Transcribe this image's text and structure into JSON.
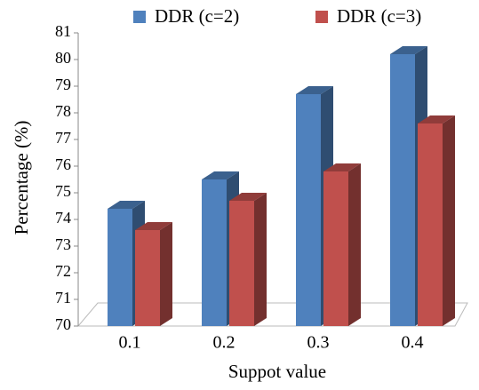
{
  "chart_data": {
    "type": "bar3d",
    "xlabel": "Suppot value",
    "ylabel": "Percentage (%)",
    "categories": [
      "0.1",
      "0.2",
      "0.3",
      "0.4"
    ],
    "series": [
      {
        "name": "DDR (c=2)",
        "color": "#4f81bd",
        "values": [
          74.4,
          75.5,
          78.7,
          80.2
        ]
      },
      {
        "name": "DDR (c=3)",
        "color": "#c0504d",
        "values": [
          73.6,
          74.7,
          75.8,
          77.6
        ]
      }
    ],
    "ylim": [
      70,
      81
    ],
    "yticks": [
      70,
      71,
      72,
      73,
      74,
      75,
      76,
      77,
      78,
      79,
      80,
      81
    ],
    "legend": "top"
  }
}
